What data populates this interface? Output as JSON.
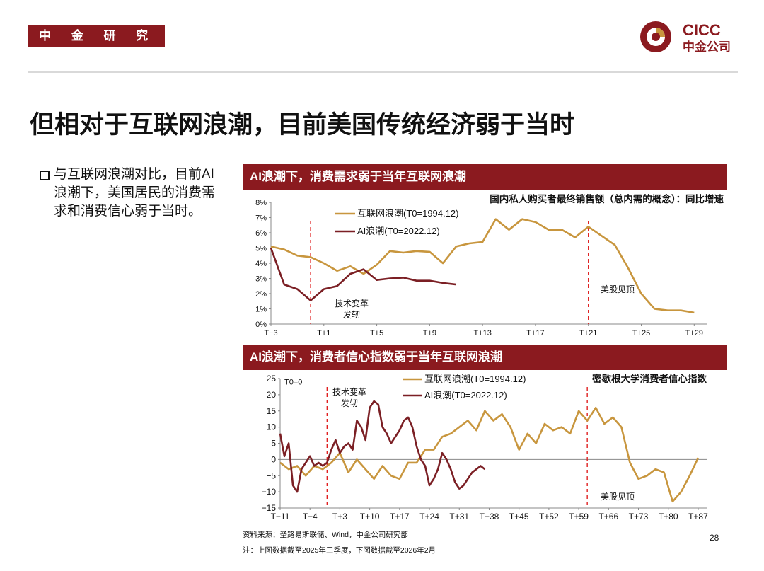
{
  "header": {
    "brand": "中 金 研 究 部",
    "logo_text": "CICC",
    "logo_subtext": "中金公司"
  },
  "title": "但相对于互联网浪潮，目前美国传统经济弱于当时",
  "bullet": {
    "text": "与互联网浪潮对比，目前AI浪潮下，美国居民的消费需求和消费信心弱于当时。"
  },
  "colors": {
    "brand": "#8b1a1f",
    "internet": "#c8963e",
    "ai": "#7b1f24",
    "marker": "#e02020"
  },
  "chart_data": [
    {
      "type": "line",
      "panel_title": "AI浪潮下，消费需求弱于当年互联网浪潮",
      "title": "国内私人购买者最终销售额（总内需的概念）：同比增速",
      "x_range": [
        -3,
        30
      ],
      "x_tick_labels": [
        "T−3",
        "T+1",
        "T+5",
        "T+9",
        "T+13",
        "T+17",
        "T+21",
        "T+25",
        "T+29"
      ],
      "x_tick_values": [
        -3,
        1,
        5,
        9,
        13,
        17,
        21,
        25,
        29
      ],
      "y_range": [
        0,
        8
      ],
      "y_tick_labels": [
        "0%",
        "1%",
        "2%",
        "3%",
        "4%",
        "5%",
        "6%",
        "7%",
        "8%"
      ],
      "y_tick_values": [
        0,
        1,
        2,
        3,
        4,
        5,
        6,
        7,
        8
      ],
      "series": [
        {
          "name": "互联网浪潮(T0=1994.12)",
          "x": [
            -3,
            -2,
            -1,
            0,
            1,
            2,
            3,
            4,
            5,
            6,
            7,
            8,
            9,
            10,
            11,
            12,
            13,
            14,
            15,
            16,
            17,
            18,
            19,
            20,
            21,
            22,
            23,
            24,
            25,
            26,
            27,
            28,
            29
          ],
          "values": [
            5.1,
            4.9,
            4.5,
            4.4,
            4.0,
            3.5,
            3.8,
            3.3,
            3.9,
            4.8,
            4.7,
            4.8,
            4.75,
            4.0,
            5.1,
            5.3,
            5.4,
            6.9,
            6.2,
            6.9,
            6.7,
            6.2,
            6.2,
            5.7,
            6.4,
            5.8,
            5.2,
            3.7,
            2.0,
            1.0,
            0.9,
            0.9,
            0.75
          ]
        },
        {
          "name": "AI浪潮(T0=2022.12)",
          "x": [
            -3,
            -2,
            -1,
            0,
            1,
            2,
            3,
            4,
            5,
            6,
            7,
            8,
            9,
            10,
            11
          ],
          "values": [
            5.0,
            2.6,
            2.3,
            1.55,
            2.3,
            2.5,
            3.3,
            3.6,
            2.9,
            3.0,
            3.05,
            2.85,
            2.85,
            2.7,
            2.6
          ]
        }
      ],
      "annotations": [
        {
          "text_lines": [
            "技术变革",
            "发轫"
          ],
          "x": 0
        },
        {
          "text_lines": [
            "美股见顶"
          ],
          "x": 21
        }
      ],
      "legend": "top-left"
    },
    {
      "type": "line",
      "panel_title": "AI浪潮下，消费者信心指数弱于当年互联网浪潮",
      "title": "密歇根大学消费者信心指数",
      "x_range": [
        -11,
        89
      ],
      "x_tick_labels": [
        "T−11",
        "T−4",
        "T+3",
        "T+10",
        "T+17",
        "T+24",
        "T+31",
        "T+38",
        "T+45",
        "T+52",
        "T+59",
        "T+66",
        "T+73",
        "T+80",
        "T+87"
      ],
      "x_tick_values": [
        -11,
        -4,
        3,
        10,
        17,
        24,
        31,
        38,
        45,
        52,
        59,
        66,
        73,
        80,
        87
      ],
      "y_range": [
        -15,
        25
      ],
      "y_tick_labels": [
        "−15",
        "−10",
        "−5",
        "0",
        "5",
        "10",
        "15",
        "20",
        "25"
      ],
      "y_tick_values": [
        -15,
        -10,
        -5,
        0,
        5,
        10,
        15,
        20,
        25
      ],
      "y_note": "T0=0",
      "series": [
        {
          "name": "互联网浪潮(T0=1994.12)",
          "x": [
            -11,
            -9,
            -7,
            -5,
            -3,
            -1,
            1,
            3,
            5,
            7,
            9,
            11,
            13,
            15,
            17,
            19,
            21,
            23,
            25,
            27,
            29,
            31,
            33,
            35,
            37,
            39,
            41,
            43,
            45,
            47,
            49,
            51,
            53,
            55,
            57,
            59,
            61,
            63,
            65,
            67,
            69,
            71,
            73,
            75,
            77,
            79,
            81,
            83,
            85,
            87
          ],
          "values": [
            -1,
            -3,
            -2,
            -5,
            -2,
            -3,
            -1,
            2,
            -4,
            0,
            -3,
            -6,
            -2,
            -5,
            -6,
            -1,
            -1,
            3,
            3,
            7,
            8,
            10,
            12,
            9,
            15,
            12,
            14,
            10,
            3,
            8,
            5,
            11,
            9,
            10,
            8,
            15,
            12,
            16,
            11,
            13,
            10,
            -1,
            -6,
            -5,
            -3,
            -4,
            -13,
            -10,
            -5,
            0.5
          ]
        },
        {
          "name": "AI浪潮(T0=2022.12)",
          "x": [
            -11,
            -10,
            -9,
            -8,
            -7,
            -6,
            -5,
            -4,
            -3,
            -2,
            -1,
            0,
            1,
            2,
            3,
            4,
            5,
            6,
            7,
            8,
            9,
            10,
            11,
            12,
            13,
            14,
            15,
            16,
            17,
            18,
            19,
            20,
            21,
            22,
            23,
            24,
            25,
            26,
            27,
            28,
            29,
            30,
            31,
            32,
            33,
            34,
            35,
            36,
            37
          ],
          "values": [
            8,
            1,
            5,
            -8,
            -10,
            -3,
            -1,
            1,
            -2,
            -1,
            -2,
            -1,
            3,
            6,
            2,
            4,
            5,
            3,
            12,
            10,
            6,
            16,
            18,
            17,
            10,
            8,
            5,
            7,
            9,
            12,
            13,
            10,
            4,
            0,
            -2,
            -8,
            -6,
            -3,
            2,
            0,
            -3,
            -7,
            -9,
            -8,
            -6,
            -4,
            -3,
            -2,
            -3
          ]
        }
      ],
      "annotations": [
        {
          "text_lines": [
            "技术变革",
            "发轫"
          ],
          "x": 0
        },
        {
          "text_lines": [
            "美股见顶"
          ],
          "x": 61
        }
      ],
      "legend": "top-center"
    }
  ],
  "footer": {
    "source": "资料来源：圣路易斯联储、Wind，中金公司研究部",
    "note": "注：上图数据截至2025年三季度，下图数据截至2026年2月",
    "page": "28"
  }
}
